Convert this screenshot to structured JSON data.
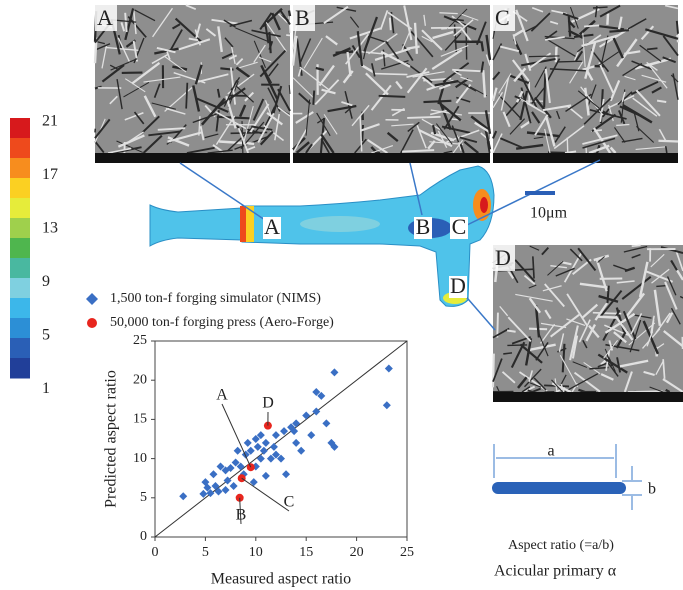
{
  "chart_data": {
    "type": "scatter",
    "xlabel": "Measured aspect ratio",
    "ylabel": "Predicted aspect ratio",
    "xlim": [
      0,
      25
    ],
    "ylim": [
      0,
      25
    ],
    "xticks": [
      0,
      5,
      10,
      15,
      20,
      25
    ],
    "yticks": [
      0,
      5,
      10,
      15,
      20,
      25
    ],
    "identity_line": true,
    "series": [
      {
        "name": "1,500 ton-f forging simulator (NIMS)",
        "color": "#3a6fc4",
        "marker": "diamond",
        "x": [
          2.8,
          4.8,
          5.2,
          5.0,
          5.5,
          5.8,
          6.0,
          6.3,
          6.5,
          7.0,
          7.2,
          7.5,
          7.0,
          7.8,
          8.0,
          8.2,
          8.5,
          8.8,
          9.0,
          9.2,
          9.5,
          9.8,
          10.0,
          10.0,
          10.2,
          10.5,
          10.5,
          10.8,
          11.0,
          11.0,
          11.5,
          11.8,
          12.0,
          12.0,
          12.5,
          12.8,
          13.0,
          13.5,
          13.8,
          14.0,
          14.0,
          14.5,
          15.0,
          15.5,
          16.0,
          16.0,
          16.5,
          17.0,
          17.5,
          17.8,
          17.8,
          23.0,
          23.2
        ],
        "values": [
          5.2,
          5.5,
          6.3,
          7.0,
          5.6,
          8.0,
          6.5,
          5.8,
          9.0,
          8.5,
          7.2,
          8.8,
          6.0,
          6.5,
          9.5,
          11.0,
          9.0,
          8.0,
          10.5,
          12.0,
          11.0,
          7.0,
          9.0,
          12.5,
          11.5,
          10.0,
          13.0,
          11.0,
          12.0,
          7.8,
          10.0,
          11.5,
          13.0,
          10.5,
          10.0,
          13.5,
          8.0,
          14.0,
          13.5,
          12.0,
          14.5,
          11.0,
          15.5,
          13.0,
          16.0,
          18.5,
          18.0,
          14.5,
          12.0,
          21.0,
          11.5,
          16.8,
          21.5
        ]
      },
      {
        "name": "50,000 ton-f forging press (Aero-Forge)",
        "color": "#e8261e",
        "marker": "circle",
        "x": [
          8.4,
          8.6,
          9.5,
          11.2
        ],
        "values": [
          5.0,
          7.5,
          8.9,
          14.2
        ]
      }
    ],
    "annotations": [
      "A",
      "B",
      "C",
      "D"
    ]
  },
  "colorbar": {
    "ticks": [
      "21",
      "17",
      "13",
      "9",
      "5",
      "1"
    ],
    "colors": [
      "#d7191c",
      "#ee4a1c",
      "#f78d1e",
      "#fbd022",
      "#e6ec3a",
      "#9fd04c",
      "#4fb64e",
      "#49b8a0",
      "#7fd0e0",
      "#3cb7ea",
      "#2c8fd6",
      "#2a5fb6",
      "#213f99"
    ]
  },
  "micrographs": [
    "A",
    "B",
    "C",
    "D"
  ],
  "forging_labels": [
    "A",
    "B",
    "C",
    "D"
  ],
  "scale_bar": "10μm",
  "aspect_diagram": {
    "a": "a",
    "b": "b",
    "formula": "Aspect ratio (=a/b)",
    "caption": "Acicular primary α"
  }
}
